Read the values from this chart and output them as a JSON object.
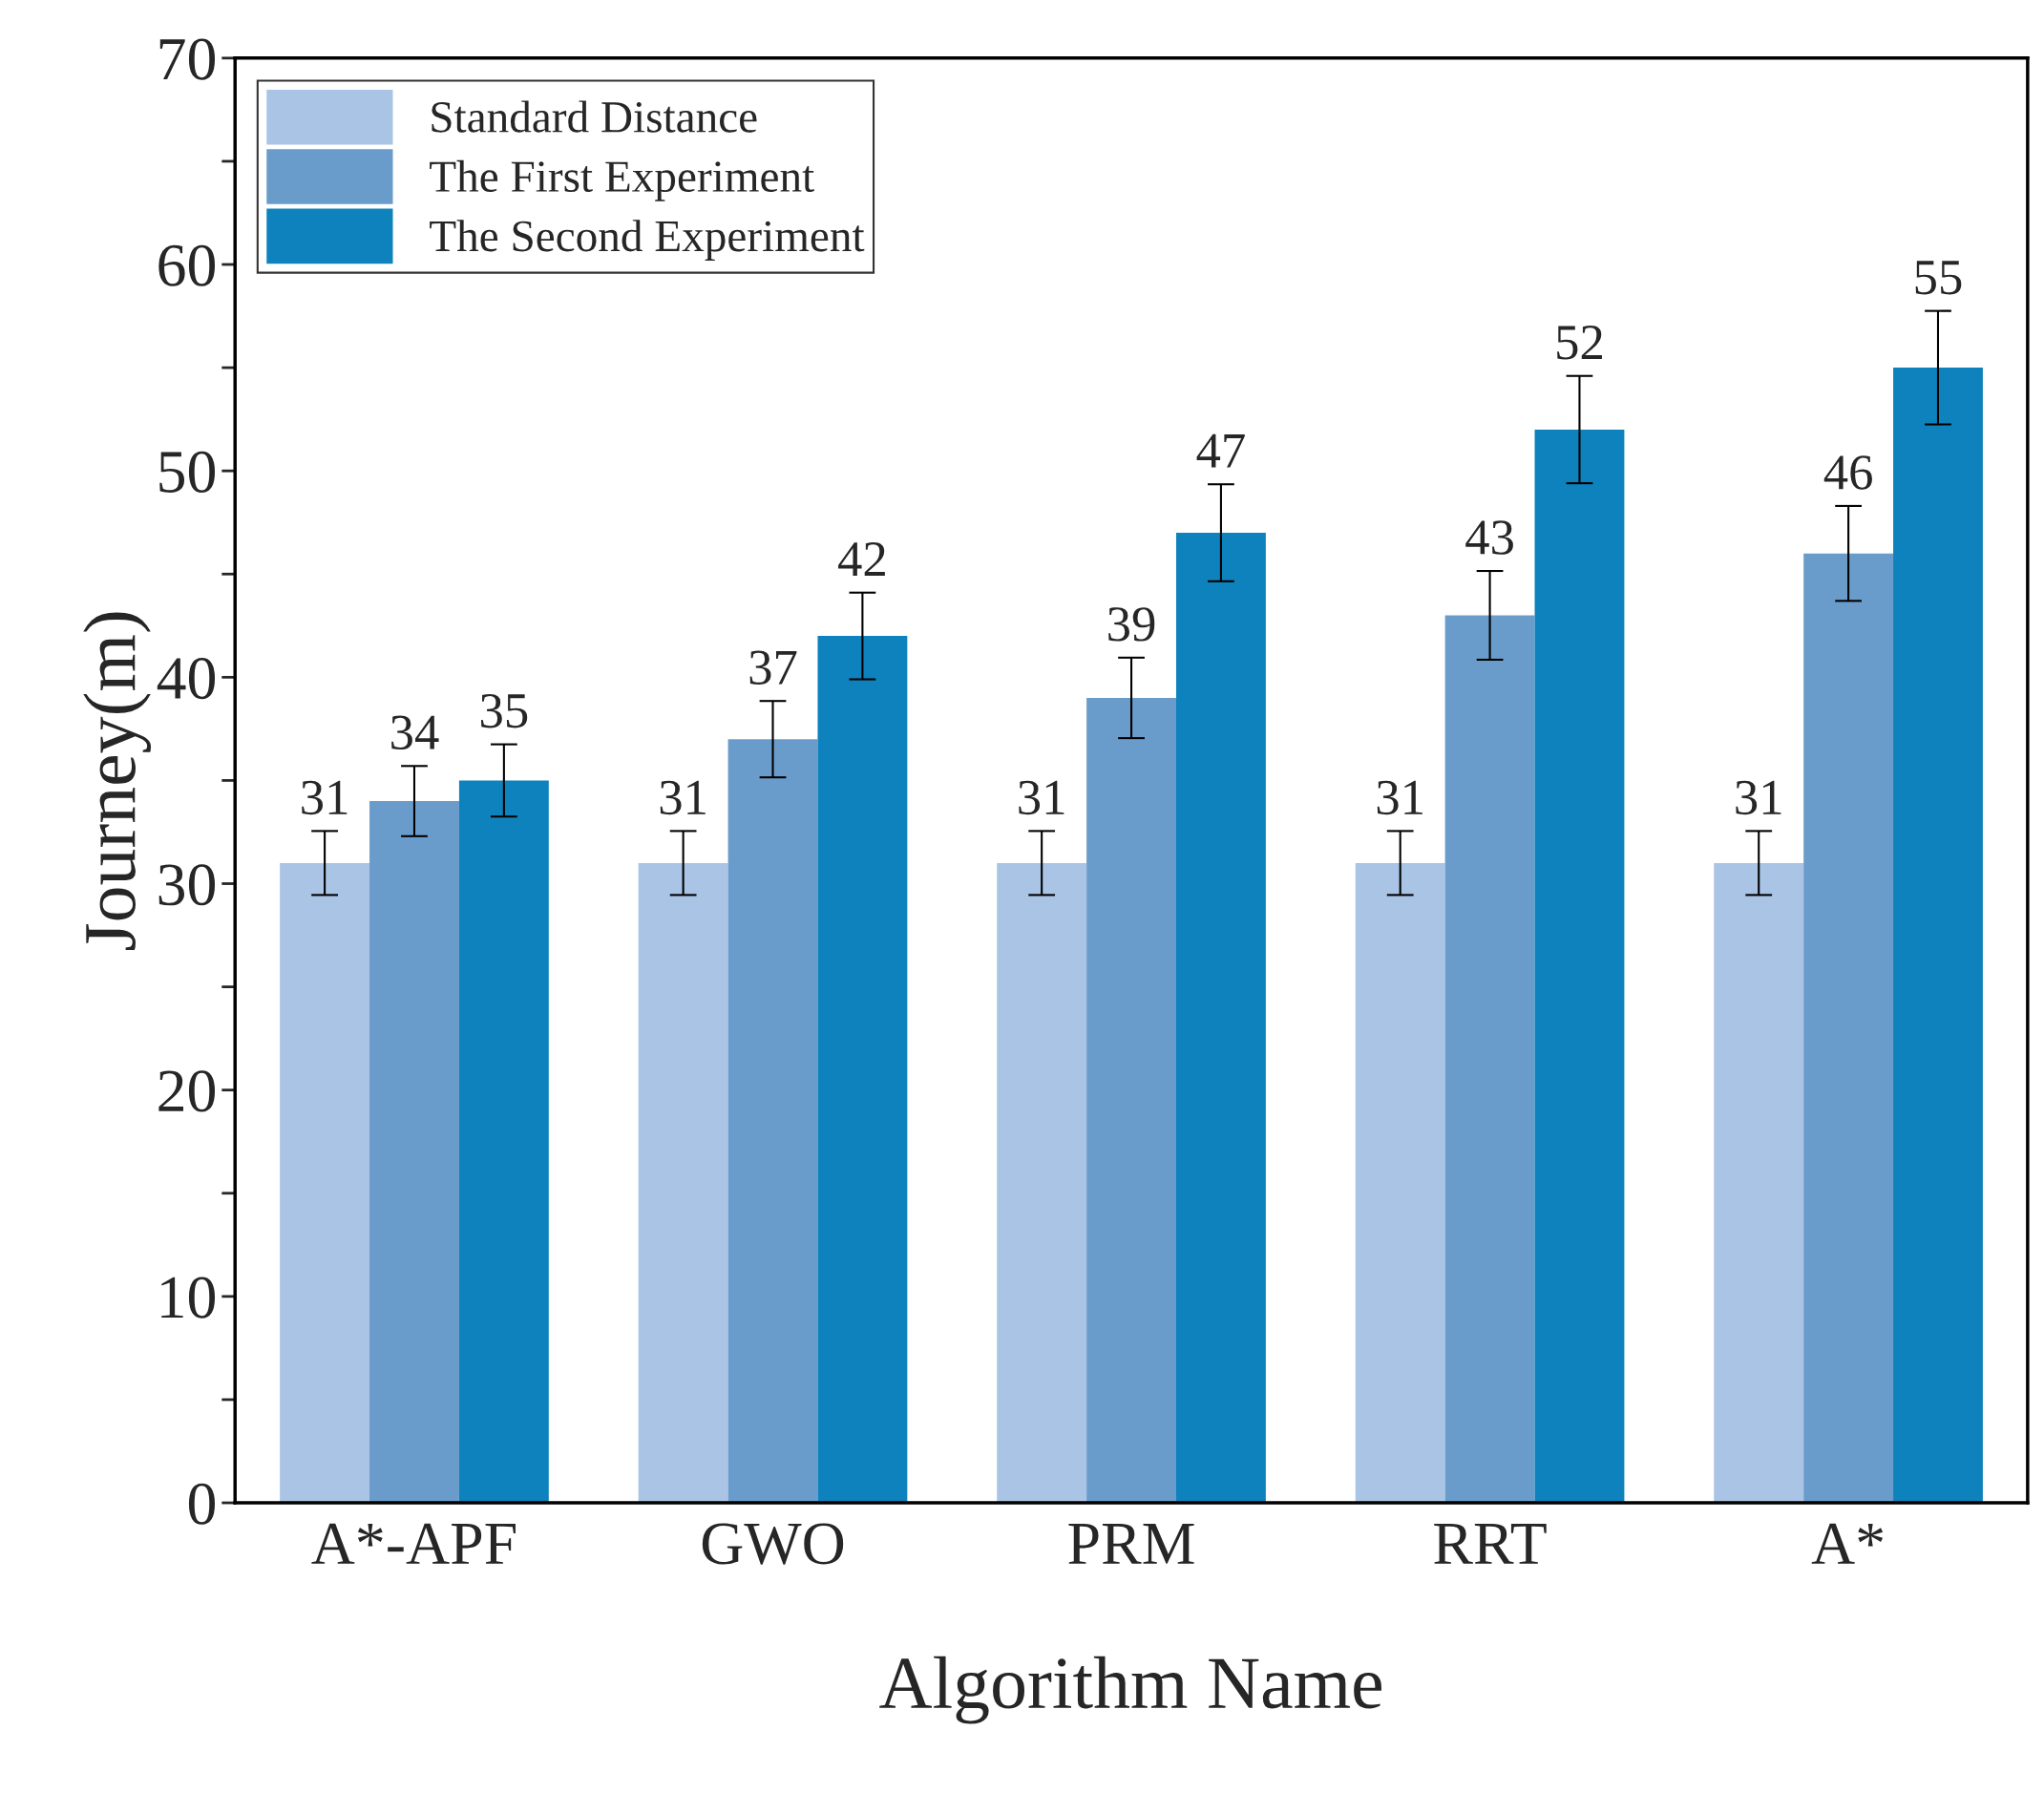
{
  "chart_data": {
    "type": "bar",
    "xlabel": "Algorithm Name",
    "ylabel": "Journey(m)",
    "categories": [
      "A*-APF",
      "GWO",
      "PRM",
      "RRT",
      "A*"
    ],
    "series": [
      {
        "name": "Standard Distance",
        "color": "#a9c4e4",
        "values": [
          31,
          31,
          31,
          31,
          31
        ],
        "errors": [
          1.55,
          1.55,
          1.55,
          1.55,
          1.55
        ]
      },
      {
        "name": "The First Experiment",
        "color": "#6a9ccb",
        "values": [
          34,
          37,
          39,
          43,
          46
        ],
        "errors": [
          1.7,
          1.85,
          1.95,
          2.15,
          2.3
        ]
      },
      {
        "name": "The Second Experiment",
        "color": "#0e82bc",
        "values": [
          35,
          42,
          47,
          52,
          55
        ],
        "errors": [
          1.75,
          2.1,
          2.35,
          2.6,
          2.75
        ]
      }
    ],
    "ylim": [
      0,
      70
    ],
    "yticks": [
      0,
      {
        "value": 5,
        "label": null
      },
      10,
      {
        "value": 15,
        "label": null
      },
      20,
      {
        "value": 25,
        "label": null
      },
      30,
      {
        "value": 35,
        "label": null
      },
      40,
      {
        "value": 45,
        "label": null
      },
      50,
      {
        "value": 55,
        "label": null
      },
      60,
      {
        "value": 65,
        "label": null
      },
      70
    ],
    "data_labels": true,
    "legend": "top left",
    "grid": false
  }
}
